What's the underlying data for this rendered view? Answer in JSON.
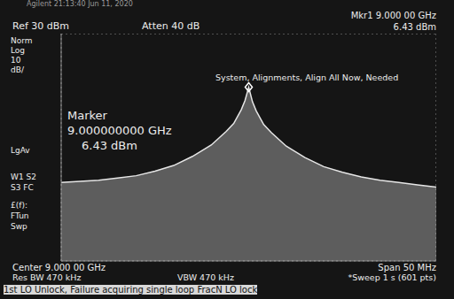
{
  "screen": {
    "header": "Agilent 21:13:40 Jun 11, 2020",
    "ref": "Ref 30 dBm",
    "atten": "Atten 40 dB",
    "mkr_freq": "Mkr1 9.000 00 GHz",
    "mkr_level": "6.43 dBm",
    "left_panel": [
      "Norm",
      "Log",
      "10",
      "dB/"
    ],
    "alert": "System, Alignments, Align All Now, Needed",
    "marker_title": "Marker",
    "marker_freq": "9.000000000 GHz",
    "marker_level": "6.43 dBm",
    "left_panel_2": [
      "LgAv",
      "W1 S2",
      "S3 FC",
      "£(f):",
      "FTun",
      "Swp"
    ],
    "center": "Center 9.000 00 GHz",
    "res_bw": "Res BW 470 kHz",
    "vbw": "VBW 470 kHz",
    "span": "Span 50 MHz",
    "sweep": "*Sweep 1 s (601 pts)",
    "status": "1st LO Unlock, Failure acquiring single loop FracN LO lock"
  },
  "chart_data": {
    "type": "area",
    "x": [
      8.975,
      8.9775,
      8.98,
      8.9825,
      8.985,
      8.9875,
      8.99,
      8.9925,
      8.995,
      8.997,
      8.998,
      8.999,
      8.9995,
      9.0,
      9.0005,
      9.001,
      9.002,
      9.003,
      9.005,
      9.0075,
      9.01,
      9.0125,
      9.015,
      9.0175,
      9.02,
      9.0225,
      9.025
    ],
    "values": [
      -35.5,
      -35,
      -34.5,
      -33.5,
      -32.5,
      -30.5,
      -28,
      -24,
      -19,
      -13,
      -9.5,
      -3.5,
      0.5,
      6.43,
      0,
      -4,
      -10,
      -13.5,
      -19.5,
      -24.5,
      -28.5,
      -31,
      -33,
      -34.5,
      -35.5,
      -36.5,
      -37.5
    ],
    "color": "#e6e6e6",
    "xlim": [
      8.975,
      9.025
    ],
    "xticks": [
      8.975,
      8.98,
      8.985,
      8.99,
      8.995,
      9.0,
      9.005,
      9.01,
      9.015,
      9.02,
      9.025
    ],
    "ylim": [
      -70,
      30
    ],
    "yticks": [
      -70,
      -60,
      -50,
      -40,
      -30,
      -20,
      -10,
      0,
      10,
      20,
      30
    ],
    "grid": true,
    "tick_labels": false
  }
}
